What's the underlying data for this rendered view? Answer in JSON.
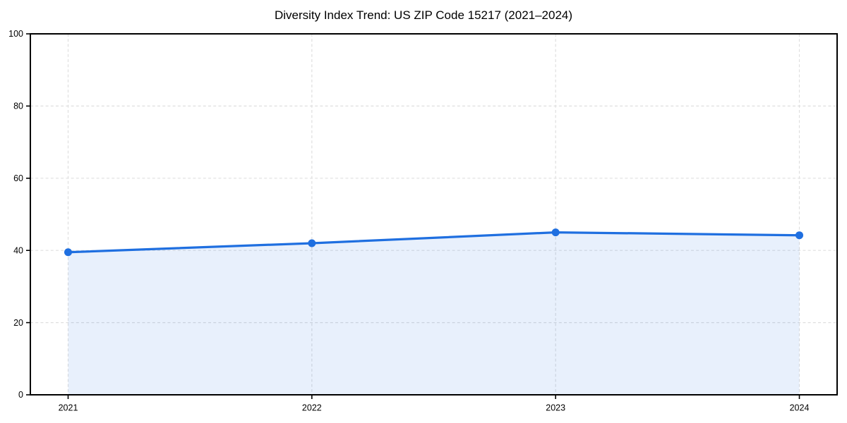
{
  "page": {
    "background": "#ffffff"
  },
  "chart_data": {
    "type": "line",
    "title": "Diversity Index Trend: US ZIP Code 15217 (2021–2024)",
    "x": [
      "2021",
      "2022",
      "2023",
      "2024"
    ],
    "series": [
      {
        "name": "Diversity Index",
        "values": [
          39.5,
          42,
          45,
          44.2
        ]
      }
    ],
    "xlabel": "",
    "ylabel": "",
    "ylim": [
      0,
      100
    ],
    "yticks": [
      0,
      20,
      40,
      60,
      80,
      100
    ],
    "grid": true,
    "grid_style": "dashed",
    "legend": "none",
    "area": true,
    "marker": "circle",
    "colors": {
      "line": "#1f6fe0",
      "marker": "#1f6fe0",
      "fill": "#1f6fe0",
      "fill_opacity": 0.1,
      "grid": "#dfdfdf",
      "axis": "#000000",
      "text": "#000000",
      "background": "#ffffff"
    }
  }
}
